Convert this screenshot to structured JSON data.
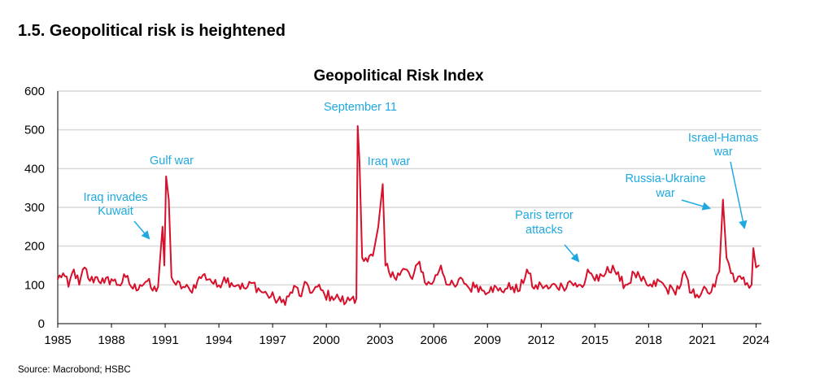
{
  "header": {
    "section_title": "1.5. Geopolitical risk is heightened"
  },
  "footer": {
    "source": "Source: Macrobond; HSBC"
  },
  "colors": {
    "series": "#d7102b",
    "annotation": "#1fa9e1",
    "grid": "#d9d9d9"
  },
  "chart_data": {
    "type": "line",
    "title": "Geopolitical Risk Index",
    "xlabel": "",
    "ylabel": "",
    "xlim": [
      1985,
      2024.3
    ],
    "ylim": [
      0,
      600
    ],
    "y_ticks": [
      0,
      100,
      200,
      300,
      400,
      500,
      600
    ],
    "x_ticks": [
      1985,
      1988,
      1991,
      1994,
      1997,
      2000,
      2003,
      2006,
      2009,
      2012,
      2015,
      2018,
      2021,
      2024
    ],
    "grid": "horizontal",
    "series": [
      {
        "name": "Geopolitical Risk Index",
        "anchors": [
          [
            1985.0,
            115
          ],
          [
            1985.3,
            130
          ],
          [
            1985.6,
            95
          ],
          [
            1985.9,
            140
          ],
          [
            1986.2,
            100
          ],
          [
            1986.5,
            145
          ],
          [
            1986.8,
            110
          ],
          [
            1987.2,
            120
          ],
          [
            1987.6,
            105
          ],
          [
            1988.0,
            115
          ],
          [
            1988.4,
            100
          ],
          [
            1988.8,
            120
          ],
          [
            1989.2,
            90
          ],
          [
            1989.6,
            100
          ],
          [
            1990.0,
            110
          ],
          [
            1990.3,
            85
          ],
          [
            1990.6,
            95
          ],
          [
            1990.85,
            250
          ],
          [
            1990.95,
            150
          ],
          [
            1991.05,
            380
          ],
          [
            1991.2,
            320
          ],
          [
            1991.35,
            120
          ],
          [
            1991.6,
            100
          ],
          [
            1992.0,
            95
          ],
          [
            1992.4,
            85
          ],
          [
            1992.8,
            110
          ],
          [
            1993.1,
            125
          ],
          [
            1993.5,
            115
          ],
          [
            1993.9,
            95
          ],
          [
            1994.3,
            120
          ],
          [
            1994.7,
            105
          ],
          [
            1995.1,
            100
          ],
          [
            1995.5,
            90
          ],
          [
            1995.9,
            105
          ],
          [
            1996.3,
            85
          ],
          [
            1996.7,
            75
          ],
          [
            1997.1,
            65
          ],
          [
            1997.5,
            55
          ],
          [
            1997.9,
            70
          ],
          [
            1998.3,
            95
          ],
          [
            1998.6,
            70
          ],
          [
            1998.9,
            105
          ],
          [
            1999.2,
            80
          ],
          [
            1999.5,
            95
          ],
          [
            1999.9,
            75
          ],
          [
            2000.3,
            70
          ],
          [
            2000.7,
            65
          ],
          [
            2001.1,
            55
          ],
          [
            2001.5,
            70
          ],
          [
            2001.68,
            65
          ],
          [
            2001.75,
            510
          ],
          [
            2001.85,
            420
          ],
          [
            2002.0,
            170
          ],
          [
            2002.3,
            160
          ],
          [
            2002.6,
            175
          ],
          [
            2002.9,
            250
          ],
          [
            2003.15,
            360
          ],
          [
            2003.3,
            150
          ],
          [
            2003.6,
            120
          ],
          [
            2004.0,
            130
          ],
          [
            2004.4,
            140
          ],
          [
            2004.8,
            115
          ],
          [
            2005.2,
            160
          ],
          [
            2005.6,
            100
          ],
          [
            2006.0,
            110
          ],
          [
            2006.4,
            150
          ],
          [
            2006.8,
            100
          ],
          [
            2007.2,
            95
          ],
          [
            2007.6,
            115
          ],
          [
            2008.0,
            90
          ],
          [
            2008.4,
            100
          ],
          [
            2008.8,
            85
          ],
          [
            2009.2,
            95
          ],
          [
            2009.6,
            85
          ],
          [
            2010.0,
            90
          ],
          [
            2010.4,
            95
          ],
          [
            2010.8,
            85
          ],
          [
            2011.2,
            140
          ],
          [
            2011.6,
            90
          ],
          [
            2012.0,
            100
          ],
          [
            2012.4,
            90
          ],
          [
            2012.8,
            100
          ],
          [
            2013.2,
            95
          ],
          [
            2013.6,
            110
          ],
          [
            2014.0,
            95
          ],
          [
            2014.4,
            100
          ],
          [
            2014.6,
            140
          ],
          [
            2014.9,
            120
          ],
          [
            2015.2,
            110
          ],
          [
            2015.6,
            130
          ],
          [
            2016.0,
            150
          ],
          [
            2016.4,
            110
          ],
          [
            2016.8,
            100
          ],
          [
            2017.2,
            130
          ],
          [
            2017.6,
            110
          ],
          [
            2017.9,
            100
          ],
          [
            2018.2,
            95
          ],
          [
            2018.6,
            110
          ],
          [
            2019.0,
            90
          ],
          [
            2019.4,
            85
          ],
          [
            2019.8,
            100
          ],
          [
            2020.0,
            135
          ],
          [
            2020.3,
            80
          ],
          [
            2020.7,
            75
          ],
          [
            2021.0,
            85
          ],
          [
            2021.3,
            80
          ],
          [
            2021.7,
            95
          ],
          [
            2021.95,
            135
          ],
          [
            2022.15,
            320
          ],
          [
            2022.35,
            170
          ],
          [
            2022.6,
            130
          ],
          [
            2022.9,
            110
          ],
          [
            2023.2,
            115
          ],
          [
            2023.5,
            105
          ],
          [
            2023.75,
            100
          ],
          [
            2023.85,
            195
          ],
          [
            2024.0,
            145
          ],
          [
            2024.15,
            150
          ]
        ]
      }
    ],
    "annotations": [
      {
        "lines": [
          "Iraq invades",
          "Kuwait"
        ]
      },
      {
        "lines": [
          "Gulf war"
        ]
      },
      {
        "lines": [
          "September 11"
        ]
      },
      {
        "lines": [
          "Iraq war"
        ]
      },
      {
        "lines": [
          "Paris terror",
          "attacks"
        ]
      },
      {
        "lines": [
          "Russia-Ukraine",
          "war"
        ]
      },
      {
        "lines": [
          "Israel-Hamas",
          "war"
        ]
      }
    ]
  }
}
